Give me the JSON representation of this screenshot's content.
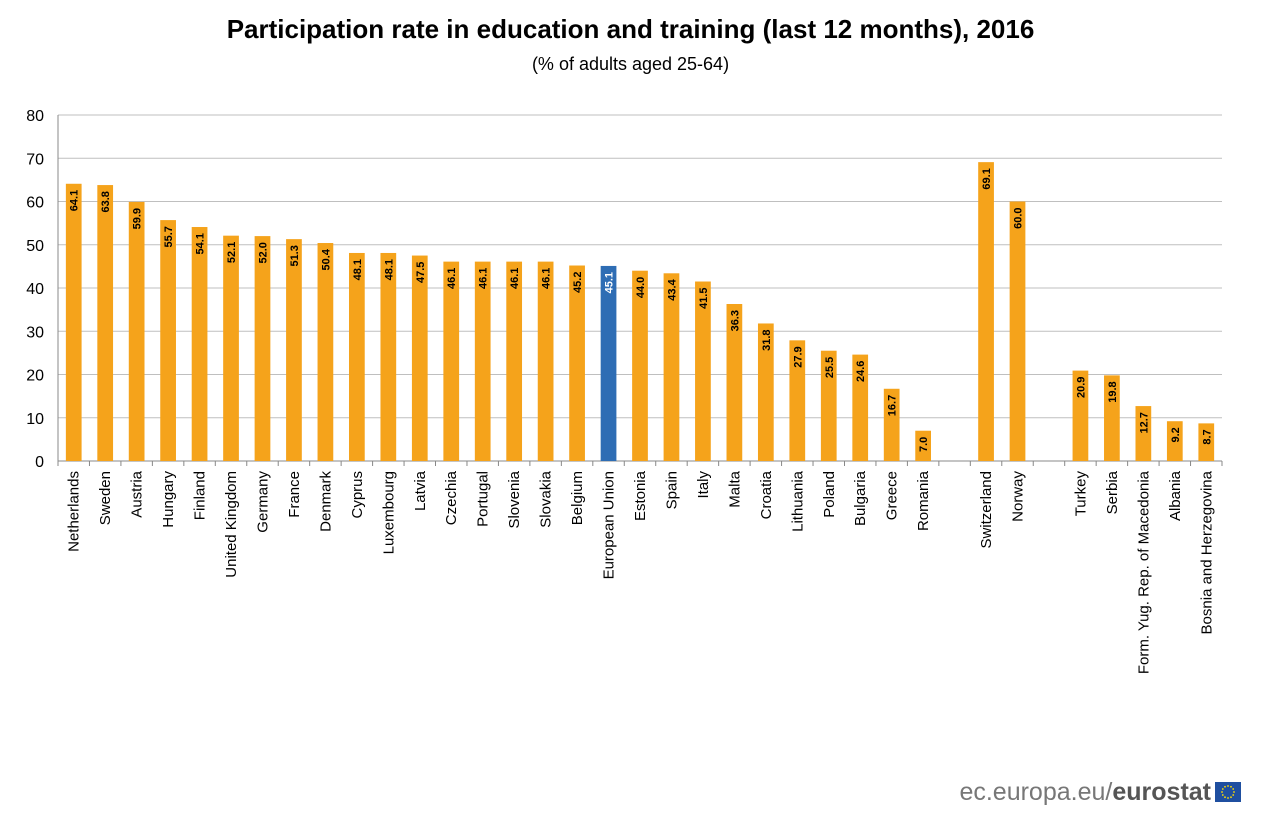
{
  "title": "Participation rate in education and training (last 12 months), 2016",
  "subtitle": "(% of adults aged 25-64)",
  "footer": {
    "site": "ec.europa.eu/",
    "brand": "eurostat"
  },
  "colors": {
    "bar": "#f5a31b",
    "highlight": "#2e6db4",
    "grid": "#bfbfbf",
    "axis": "#888888"
  },
  "icons": {
    "logo": "eu-flag-icon"
  },
  "chart_data": {
    "type": "bar",
    "title": "Participation rate in education and training (last 12 months), 2016",
    "subtitle": "(% of adults aged 25-64)",
    "xlabel": "",
    "ylabel": "",
    "ylim": [
      0,
      80
    ],
    "yticks": [
      0,
      10,
      20,
      30,
      40,
      50,
      60,
      70,
      80
    ],
    "grid": true,
    "highlight": "European Union",
    "categories": [
      "Netherlands",
      "Sweden",
      "Austria",
      "Hungary",
      "Finland",
      "United Kingdom",
      "Germany",
      "France",
      "Denmark",
      "Cyprus",
      "Luxembourg",
      "Latvia",
      "Czechia",
      "Portugal",
      "Slovenia",
      "Slovakia",
      "Belgium",
      "European Union",
      "Estonia",
      "Spain",
      "Italy",
      "Malta",
      "Croatia",
      "Lithuania",
      "Poland",
      "Bulgaria",
      "Greece",
      "Romania",
      "",
      "Switzerland",
      "Norway",
      "",
      "Turkey",
      "Serbia",
      "Form. Yug. Rep. of Macedonia",
      "Albania",
      "Bosnia and Herzegovina"
    ],
    "values": [
      64.1,
      63.8,
      59.9,
      55.7,
      54.1,
      52.1,
      52.0,
      51.3,
      50.4,
      48.1,
      48.1,
      47.5,
      46.1,
      46.1,
      46.1,
      46.1,
      45.2,
      45.1,
      44.0,
      43.4,
      41.5,
      36.3,
      31.8,
      27.9,
      25.5,
      24.6,
      16.7,
      7.0,
      null,
      69.1,
      60.0,
      null,
      20.9,
      19.8,
      12.7,
      9.2,
      8.7
    ],
    "value_labels": [
      "64.1",
      "63.8",
      "59.9",
      "55.7",
      "54.1",
      "52.1",
      "52.0",
      "51.3",
      "50.4",
      "48.1",
      "48.1",
      "47.5",
      "46.1",
      "46.1",
      "46.1",
      "46.1",
      "45.2",
      "45.1",
      "44.0",
      "43.4",
      "41.5",
      "36.3",
      "31.8",
      "27.9",
      "25.5",
      "24.6",
      "16.7",
      "7.0",
      "",
      "69.1",
      "60.0",
      "",
      "20.9",
      "19.8",
      "12.7",
      "9.2",
      "8.7"
    ]
  }
}
